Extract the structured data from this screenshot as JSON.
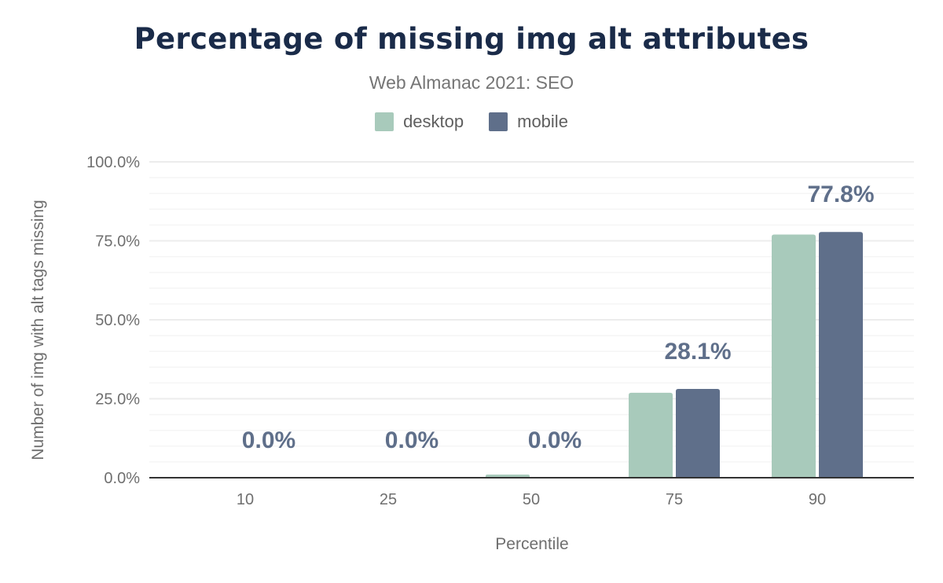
{
  "title": "Percentage of missing img alt attributes",
  "subtitle": "Web Almanac 2021: SEO",
  "colors": {
    "desktop": "#a8cabb",
    "mobile": "#5f6f8a",
    "label": "#5f6f8a",
    "title": "#1a2b49"
  },
  "chart_data": {
    "type": "bar",
    "title": "Percentage of missing img alt attributes",
    "subtitle": "Web Almanac 2021: SEO",
    "xlabel": "Percentile",
    "ylabel": "Number of img with alt tags missing",
    "categories": [
      "10",
      "25",
      "50",
      "75",
      "90"
    ],
    "series": [
      {
        "name": "desktop",
        "values": [
          0.0,
          0.0,
          1.0,
          26.9,
          77.0
        ]
      },
      {
        "name": "mobile",
        "values": [
          0.0,
          0.0,
          0.0,
          28.1,
          77.8
        ]
      }
    ],
    "data_labels": [
      "0.0%",
      "0.0%",
      "0.0%",
      "28.1%",
      "77.8%"
    ],
    "ylim": [
      0,
      100
    ],
    "yticks": [
      "0.0%",
      "25.0%",
      "50.0%",
      "75.0%",
      "100.0%"
    ],
    "grid": true,
    "legend": "top-center"
  }
}
